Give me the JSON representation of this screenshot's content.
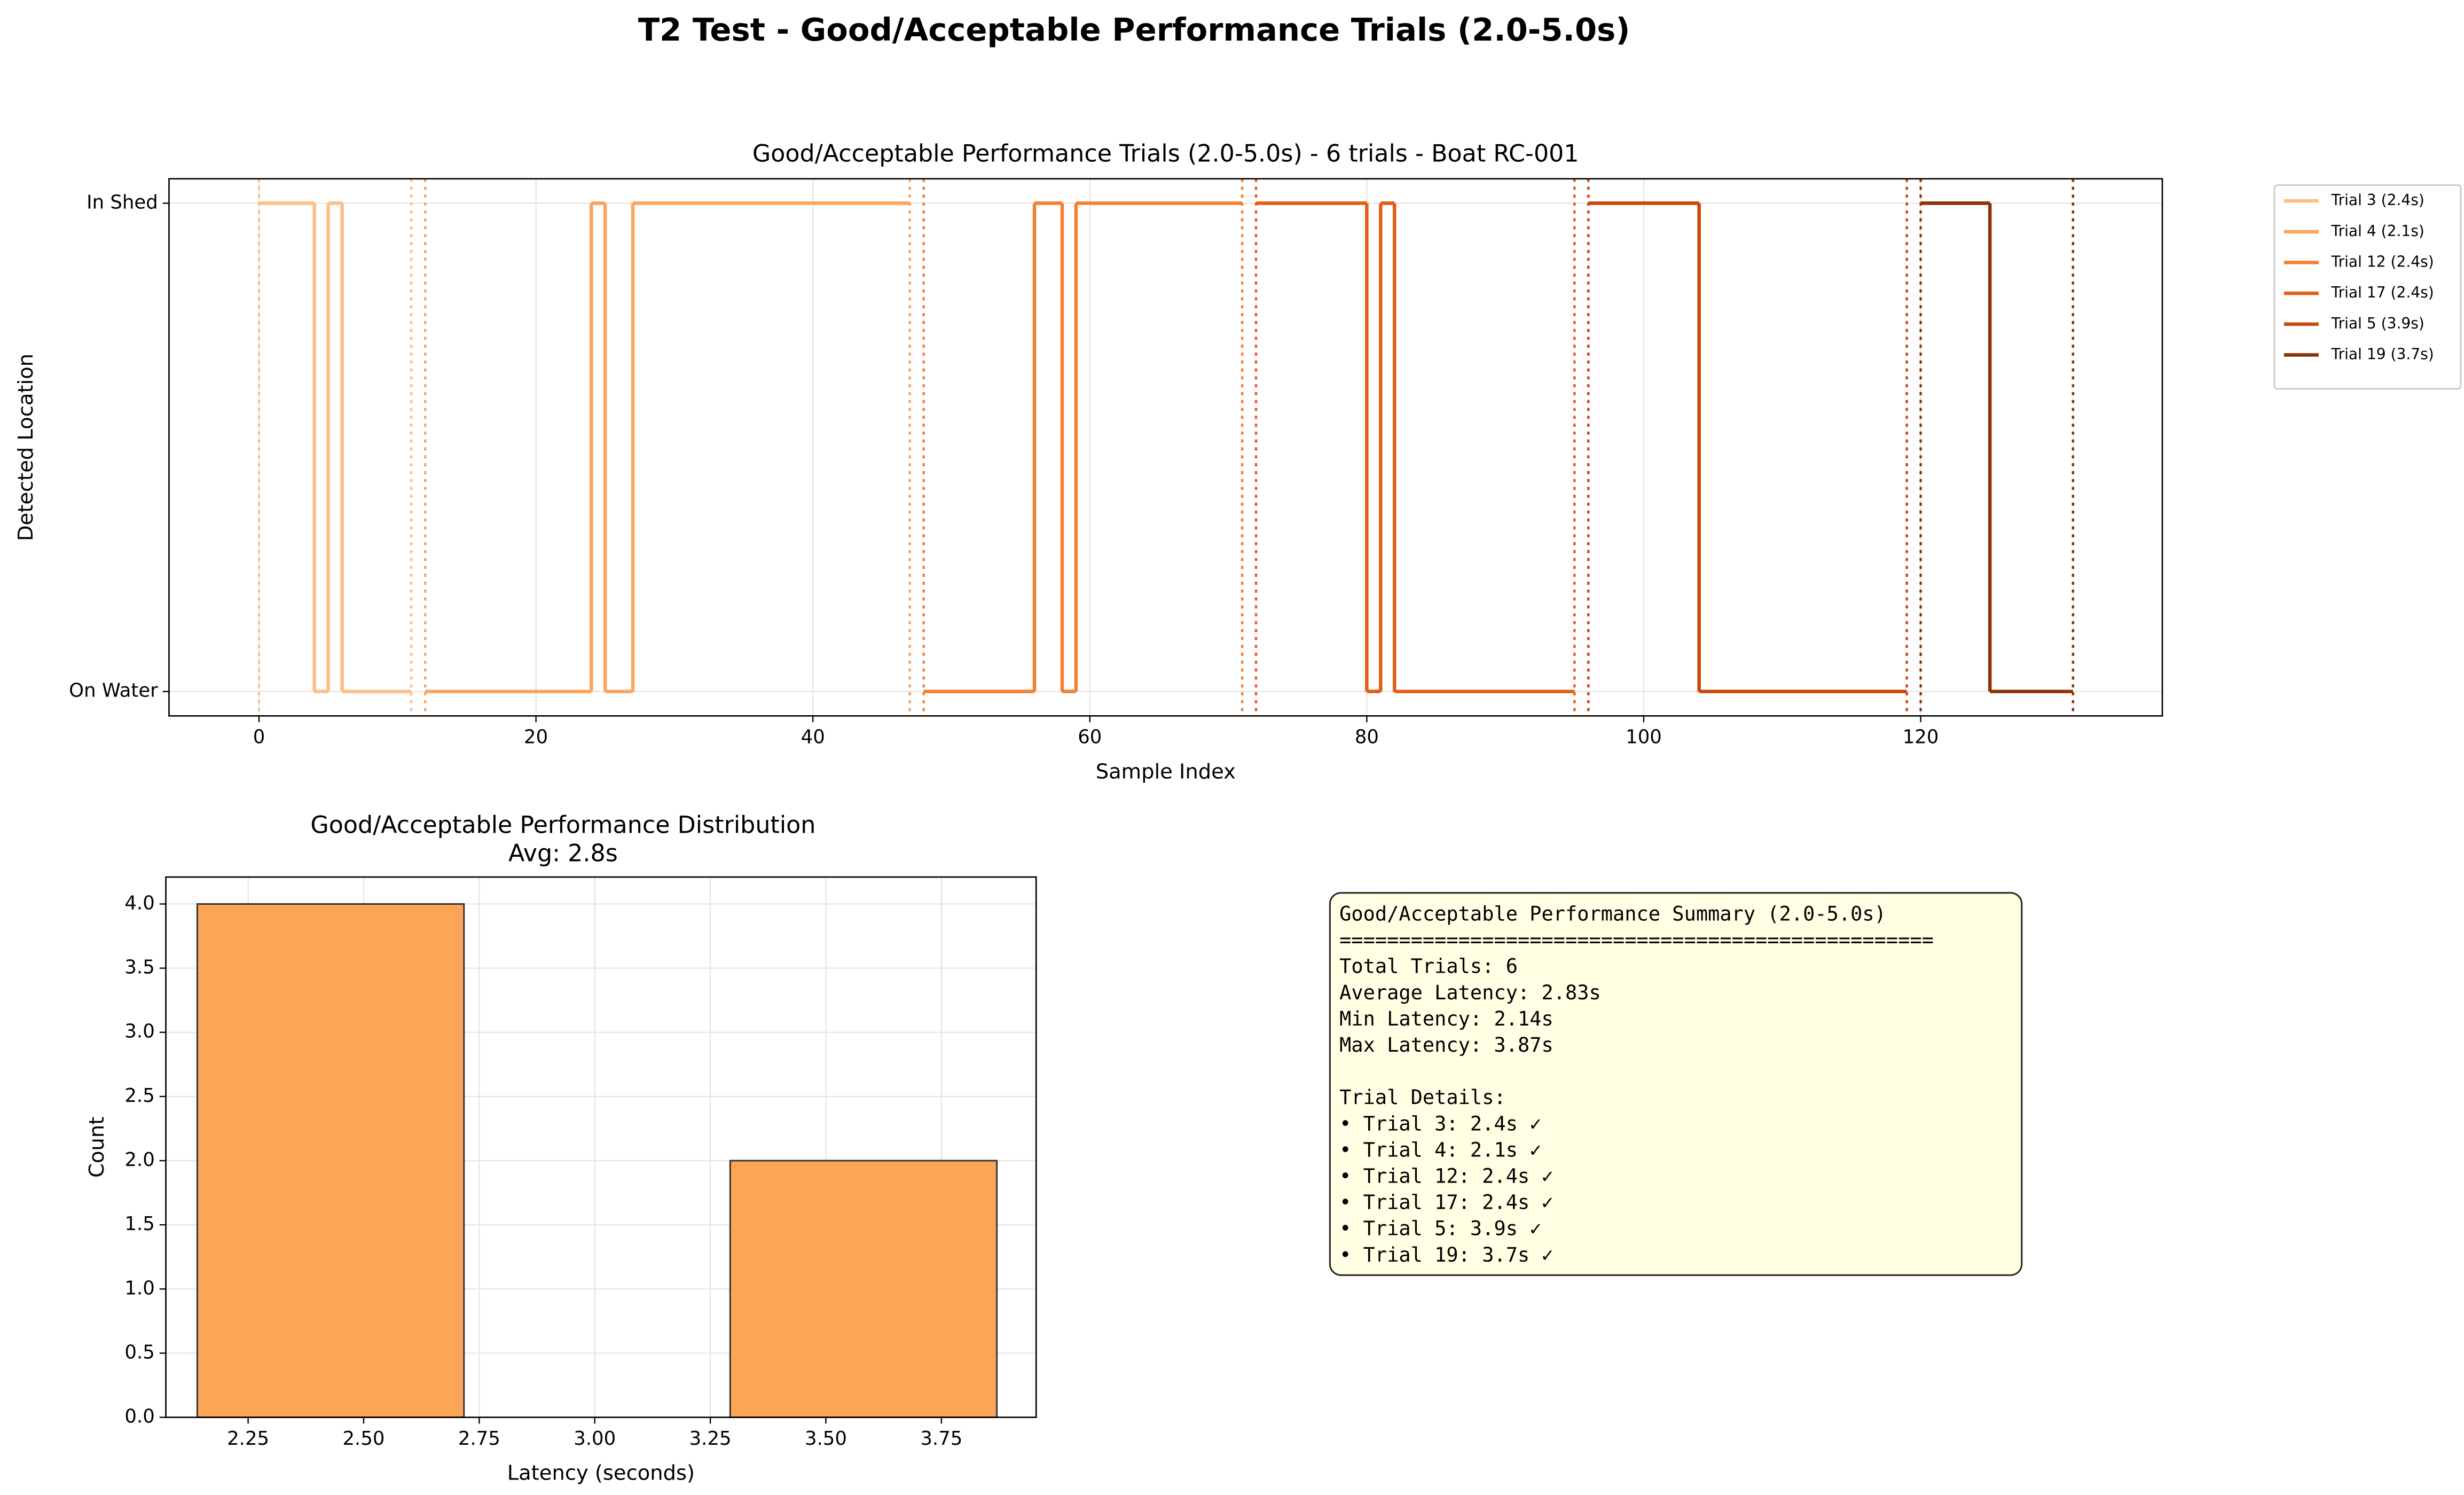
{
  "title": "T2 Test - Good/Acceptable Performance Trials (2.0-5.0s)",
  "chart_data": [
    {
      "type": "step",
      "title": "Good/Acceptable Performance Trials (2.0-5.0s) - 6 trials - Boat RC-001",
      "xlabel": "Sample Index",
      "ylabel": "Detected Location",
      "xlim": [
        -6.5,
        137.45
      ],
      "xticks": [
        0,
        20,
        40,
        60,
        80,
        100,
        120
      ],
      "ylim": [
        -0.05,
        1.05
      ],
      "yticks": [
        {
          "value": 0,
          "label": "On Water"
        },
        {
          "value": 1,
          "label": "In Shed"
        }
      ],
      "grid": true,
      "legend": "outside upper right",
      "series": [
        {
          "name": "Trial 3 (2.4s)",
          "color": "#fdbf86",
          "x": [
            0,
            4,
            5,
            6,
            11
          ],
          "values": [
            1,
            0,
            1,
            0,
            0
          ]
        },
        {
          "name": "Trial 4 (2.1s)",
          "color": "#fda45d",
          "x": [
            12,
            24,
            25,
            27,
            47
          ],
          "values": [
            0,
            1,
            0,
            1,
            1
          ]
        },
        {
          "name": "Trial 12 (2.4s)",
          "color": "#f3812e",
          "x": [
            48,
            56,
            58,
            59,
            71
          ],
          "values": [
            0,
            1,
            0,
            1,
            1
          ]
        },
        {
          "name": "Trial 17 (2.4s)",
          "color": "#e35e14",
          "x": [
            72,
            80,
            81,
            82,
            95
          ],
          "values": [
            1,
            0,
            1,
            0,
            0
          ]
        },
        {
          "name": "Trial 5 (3.9s)",
          "color": "#c9480b",
          "x": [
            96,
            104,
            119
          ],
          "values": [
            1,
            0,
            0
          ]
        },
        {
          "name": "Trial 19 (3.7s)",
          "color": "#8f3204",
          "x": [
            120,
            125,
            131
          ],
          "values": [
            1,
            0,
            0
          ]
        }
      ]
    },
    {
      "type": "histogram",
      "title": "Good/Acceptable Performance Distribution",
      "subtitle": "Avg: 2.8s",
      "xlabel": "Latency (seconds)",
      "ylabel": "Count",
      "bins": [
        2.14,
        2.717,
        3.293,
        3.87
      ],
      "values": [
        4,
        0,
        2
      ],
      "color": "#fda557",
      "xlim": [
        2.072,
        3.955
      ],
      "xticks": [
        2.25,
        {
          "value": 2.5,
          "label": "2.50"
        },
        2.75,
        {
          "value": 3,
          "label": "3.00"
        },
        3.25,
        {
          "value": 3.5,
          "label": "3.50"
        },
        3.75
      ],
      "ylim": [
        0,
        4.21
      ],
      "yticks": [
        {
          "value": 0,
          "label": "0.0"
        },
        0.5,
        {
          "value": 1,
          "label": "1.0"
        },
        1.5,
        {
          "value": 2,
          "label": "2.0"
        },
        2.5,
        {
          "value": 3,
          "label": "3.0"
        },
        3.5,
        {
          "value": 4,
          "label": "4.0"
        }
      ],
      "grid": true
    }
  ],
  "summary": {
    "title": "Good/Acceptable Performance Summary (2.0-5.0s)",
    "separator": "==================================================",
    "stats": [
      "Total Trials: 6",
      "Average Latency: 2.83s",
      "Min Latency: 2.14s",
      "Max Latency: 3.87s"
    ],
    "details_title": "Trial Details:",
    "details": [
      "• Trial 3: 2.4s ✓",
      "• Trial 4: 2.1s ✓",
      "• Trial 12: 2.4s ✓",
      "• Trial 17: 2.4s ✓",
      "• Trial 5: 3.9s ✓",
      "• Trial 19: 3.7s ✓"
    ]
  }
}
